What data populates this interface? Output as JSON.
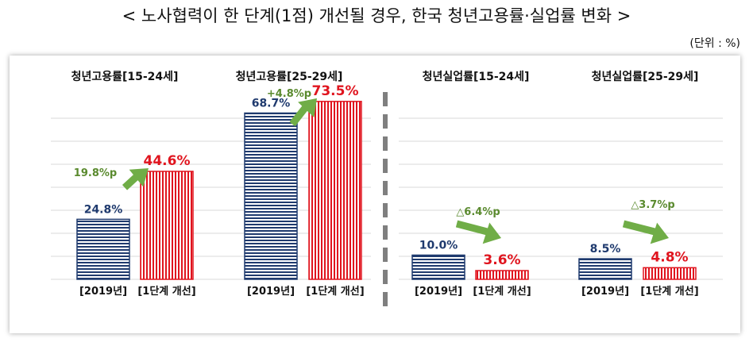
{
  "title": "< 노사협력이 한 단계(1점) 개선될 경우, 한국 청년고용률·실업률 변화 >",
  "unit": "(단위 : %)",
  "colors": {
    "baseline": "#1f3a6e",
    "improved": "#e0141e",
    "arrow": "#70ad47",
    "change_text": "#5a8a2e"
  },
  "chart_data": [
    {
      "type": "bar",
      "title": "청년고용률[15-24세]",
      "categories": [
        "[2019년]",
        "[1단계 개선]"
      ],
      "values": [
        24.8,
        44.6
      ],
      "labels": [
        "24.8%",
        "44.6%"
      ],
      "change": "19.8%p"
    },
    {
      "type": "bar",
      "title": "청년고용률[25-29세]",
      "categories": [
        "[2019년]",
        "[1단계 개선]"
      ],
      "values": [
        68.7,
        73.5
      ],
      "labels": [
        "68.7%",
        "73.5%"
      ],
      "change": "+4.8%p"
    },
    {
      "type": "bar",
      "title": "청년실업률[15-24세]",
      "categories": [
        "[2019년]",
        "[1단계 개선]"
      ],
      "values": [
        10.0,
        3.6
      ],
      "labels": [
        "10.0%",
        "3.6%"
      ],
      "change": "△6.4%p"
    },
    {
      "type": "bar",
      "title": "청년실업률[25-29세]",
      "categories": [
        "[2019년]",
        "[1단계 개선]"
      ],
      "values": [
        8.5,
        4.8
      ],
      "labels": [
        "8.5%",
        "4.8%"
      ],
      "change": "△3.7%p"
    }
  ]
}
